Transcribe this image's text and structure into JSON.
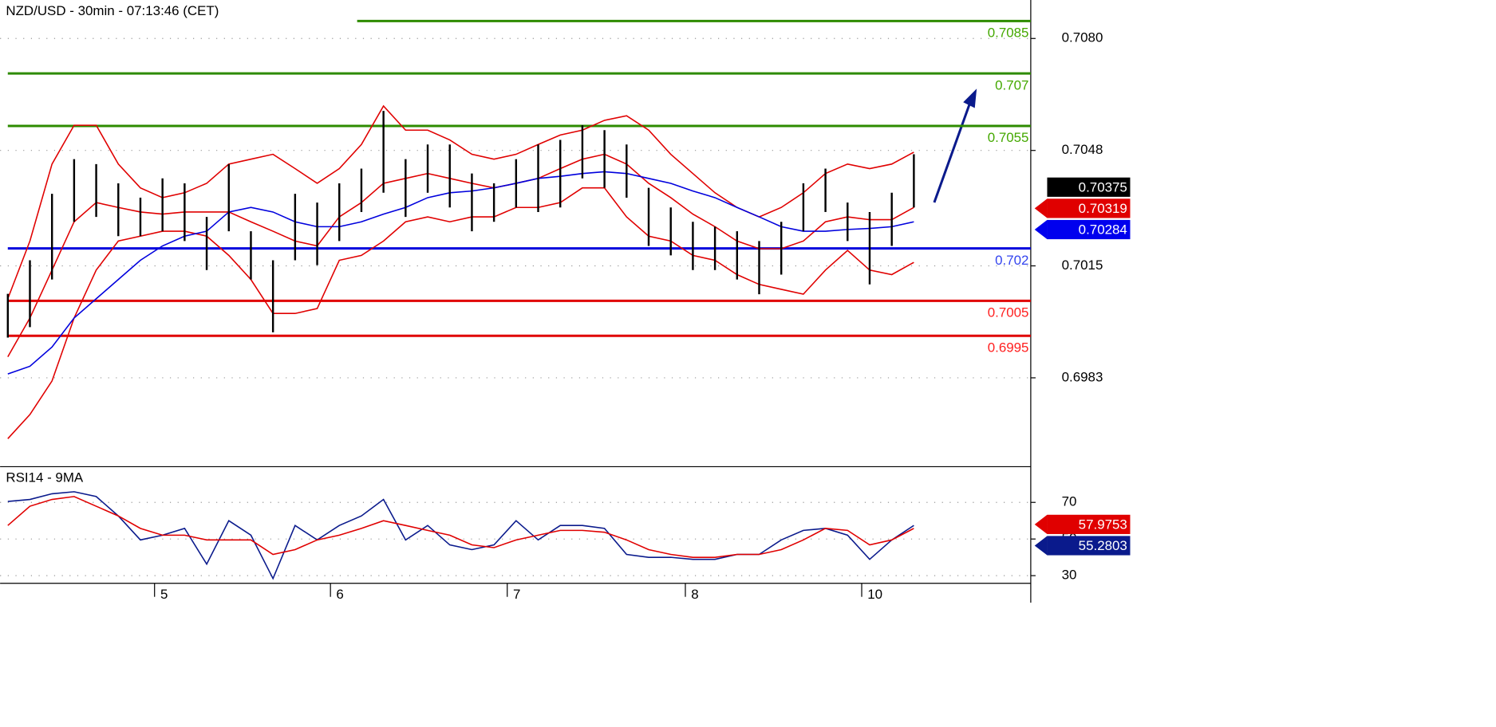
{
  "chart_data": [
    {
      "type": "ohlc",
      "title": "NZD/USD - 30min - 07:13:46 (CET)",
      "xlim": [
        -0.35,
        46.29
      ],
      "ylim": [
        0.69576,
        0.7091
      ],
      "yticks": [
        {
          "value": 0.708,
          "label": "0.7080"
        },
        0.7048,
        0.7015,
        0.6983
      ],
      "grid": true,
      "bars": {
        "color": "#000000",
        "high": [
          0.7007,
          0.70166,
          0.70356,
          0.70455,
          0.70441,
          0.70386,
          0.70345,
          0.704,
          0.70386,
          0.7029,
          0.70441,
          0.70249,
          0.70166,
          0.70356,
          0.70331,
          0.70386,
          0.70428,
          0.70593,
          0.70455,
          0.70497,
          0.70497,
          0.70414,
          0.70386,
          0.70455,
          0.70497,
          0.7051,
          0.70552,
          0.70538,
          0.70497,
          0.70373,
          0.70317,
          0.70276,
          0.70262,
          0.70249,
          0.70221,
          0.70276,
          0.70386,
          0.70428,
          0.70331,
          0.70304,
          0.70359,
          0.70469
        ],
        "low": [
          0.69945,
          0.69975,
          0.70111,
          0.70276,
          0.7029,
          0.70235,
          0.70235,
          0.70249,
          0.70221,
          0.70138,
          0.70249,
          0.70111,
          0.6996,
          0.70166,
          0.70152,
          0.70221,
          0.70304,
          0.70359,
          0.7029,
          0.70359,
          0.70317,
          0.70249,
          0.70276,
          0.70317,
          0.70304,
          0.70317,
          0.704,
          0.70373,
          0.70345,
          0.70207,
          0.7018,
          0.70138,
          0.70138,
          0.70111,
          0.70069,
          0.70125,
          0.70249,
          0.70304,
          0.70221,
          0.70097,
          0.70207,
          0.70317
        ]
      },
      "series": [
        {
          "color": "#e00000",
          "values": [
            0.70056,
            0.70221,
            0.70441,
            0.70552,
            0.70552,
            0.70441,
            0.70373,
            0.70345,
            0.70359,
            0.70386,
            0.70441,
            0.70455,
            0.70469,
            0.70428,
            0.70386,
            0.70428,
            0.70497,
            0.70607,
            0.70538,
            0.70538,
            0.7051,
            0.70469,
            0.70455,
            0.70469,
            0.70497,
            0.70524,
            0.70538,
            0.70566,
            0.70579,
            0.70538,
            0.70469,
            0.70414,
            0.70359,
            0.70317,
            0.7029,
            0.70317,
            0.70359,
            0.70414,
            0.70441,
            0.70428,
            0.70441,
            0.70475
          ]
        },
        {
          "color": "#e00000",
          "values": [
            0.69656,
            0.69725,
            0.69821,
            0.70001,
            0.70138,
            0.70221,
            0.70235,
            0.70249,
            0.70249,
            0.70235,
            0.7018,
            0.70111,
            0.70014,
            0.70014,
            0.70028,
            0.70166,
            0.7018,
            0.70221,
            0.70276,
            0.7029,
            0.70276,
            0.7029,
            0.7029,
            0.70317,
            0.70317,
            0.70331,
            0.70373,
            0.70373,
            0.7029,
            0.70235,
            0.70221,
            0.7018,
            0.70166,
            0.70125,
            0.70097,
            0.70083,
            0.70069,
            0.70138,
            0.70194,
            0.70138,
            0.70125,
            0.7016
          ]
        },
        {
          "color": "#e00000",
          "values": [
            0.6989,
            0.70001,
            0.70138,
            0.70276,
            0.70331,
            0.70317,
            0.70304,
            0.70298,
            0.70304,
            0.70304,
            0.70304,
            0.70276,
            0.70249,
            0.70221,
            0.70207,
            0.7029,
            0.70331,
            0.70386,
            0.704,
            0.70414,
            0.704,
            0.70386,
            0.70373,
            0.70386,
            0.704,
            0.70428,
            0.70455,
            0.70469,
            0.70441,
            0.70386,
            0.70345,
            0.70298,
            0.70262,
            0.70221,
            0.70199,
            0.70199,
            0.70221,
            0.70276,
            0.7029,
            0.70282,
            0.70282,
            0.70317
          ]
        },
        {
          "color": "#0000dd",
          "values": [
            0.69841,
            0.69863,
            0.69918,
            0.70001,
            0.70056,
            0.70111,
            0.70166,
            0.70207,
            0.70235,
            0.70249,
            0.70304,
            0.70317,
            0.70304,
            0.70276,
            0.70262,
            0.70262,
            0.70276,
            0.70298,
            0.70317,
            0.70345,
            0.70359,
            0.70364,
            0.70373,
            0.70386,
            0.704,
            0.70406,
            0.70414,
            0.70419,
            0.70414,
            0.704,
            0.70386,
            0.70364,
            0.70345,
            0.70317,
            0.7029,
            0.70262,
            0.70249,
            0.70249,
            0.70254,
            0.70257,
            0.70262,
            0.70276
          ]
        }
      ],
      "levels": [
        {
          "value": 0.7085,
          "color": "#2e8b00",
          "label_color": "#44a800"
        },
        {
          "value": 0.707,
          "color": "#2e8b00",
          "label_color": "#44a800"
        },
        {
          "value": 0.7055,
          "color": "#2e8b00",
          "label_color": "#44a800"
        },
        {
          "value": 0.702,
          "color": "#0000dd",
          "label_color": "#3344ee"
        },
        {
          "value": 0.7005,
          "color": "#e00000",
          "label_color": "#ff2020"
        },
        {
          "value": 0.6995,
          "color": "#e00000",
          "label_color": "#ff2020"
        }
      ],
      "price_tags": [
        {
          "value": 0.70375,
          "color": "#000000"
        },
        {
          "value": 0.70319,
          "color": "#e00000"
        },
        {
          "value": 0.70284,
          "color": "#0000ee"
        }
      ]
    },
    {
      "type": "line",
      "title": "RSI14 - 9MA",
      "xlim": [
        -0.35,
        46.29
      ],
      "ylim": [
        25.8,
        89.5
      ],
      "xticks": [
        {
          "value": 6.64,
          "label": "5"
        },
        {
          "value": 14.6,
          "label": "6"
        },
        {
          "value": 22.6,
          "label": "7"
        },
        {
          "value": 30.66,
          "label": "8"
        },
        {
          "value": 38.64,
          "label": "10"
        }
      ],
      "yticks": [
        30,
        50,
        70
      ],
      "grid": true,
      "series": [
        {
          "color": "#0a1a8c",
          "values": [
            70.5,
            71.6,
            74.7,
            75.8,
            73.2,
            62.6,
            49.5,
            52.1,
            55.8,
            36.3,
            60.0,
            52.1,
            28.4,
            57.4,
            49.5,
            57.4,
            62.6,
            71.6,
            49.5,
            57.4,
            46.8,
            44.2,
            46.8,
            60.0,
            49.5,
            57.4,
            57.4,
            55.8,
            41.6,
            40.0,
            40.0,
            38.9,
            38.9,
            41.6,
            41.6,
            49.5,
            54.7,
            55.8,
            52.1,
            38.9,
            49.5,
            57.4
          ]
        },
        {
          "color": "#e00000",
          "values": [
            57.4,
            67.9,
            71.6,
            73.2,
            67.9,
            62.6,
            55.8,
            52.1,
            52.1,
            49.5,
            49.5,
            49.5,
            41.6,
            44.2,
            49.5,
            52.1,
            55.8,
            60.0,
            57.4,
            54.7,
            52.1,
            46.8,
            45.3,
            49.5,
            52.1,
            54.7,
            54.7,
            53.7,
            49.5,
            44.2,
            41.6,
            40.0,
            40.0,
            41.6,
            41.6,
            44.2,
            49.5,
            55.8,
            54.7,
            46.8,
            49.5,
            55.8
          ]
        }
      ],
      "price_tags": [
        {
          "value": 57.9753,
          "color": "#e00000"
        },
        {
          "value": 55.2803,
          "color": "#0a1a8c"
        }
      ]
    }
  ]
}
